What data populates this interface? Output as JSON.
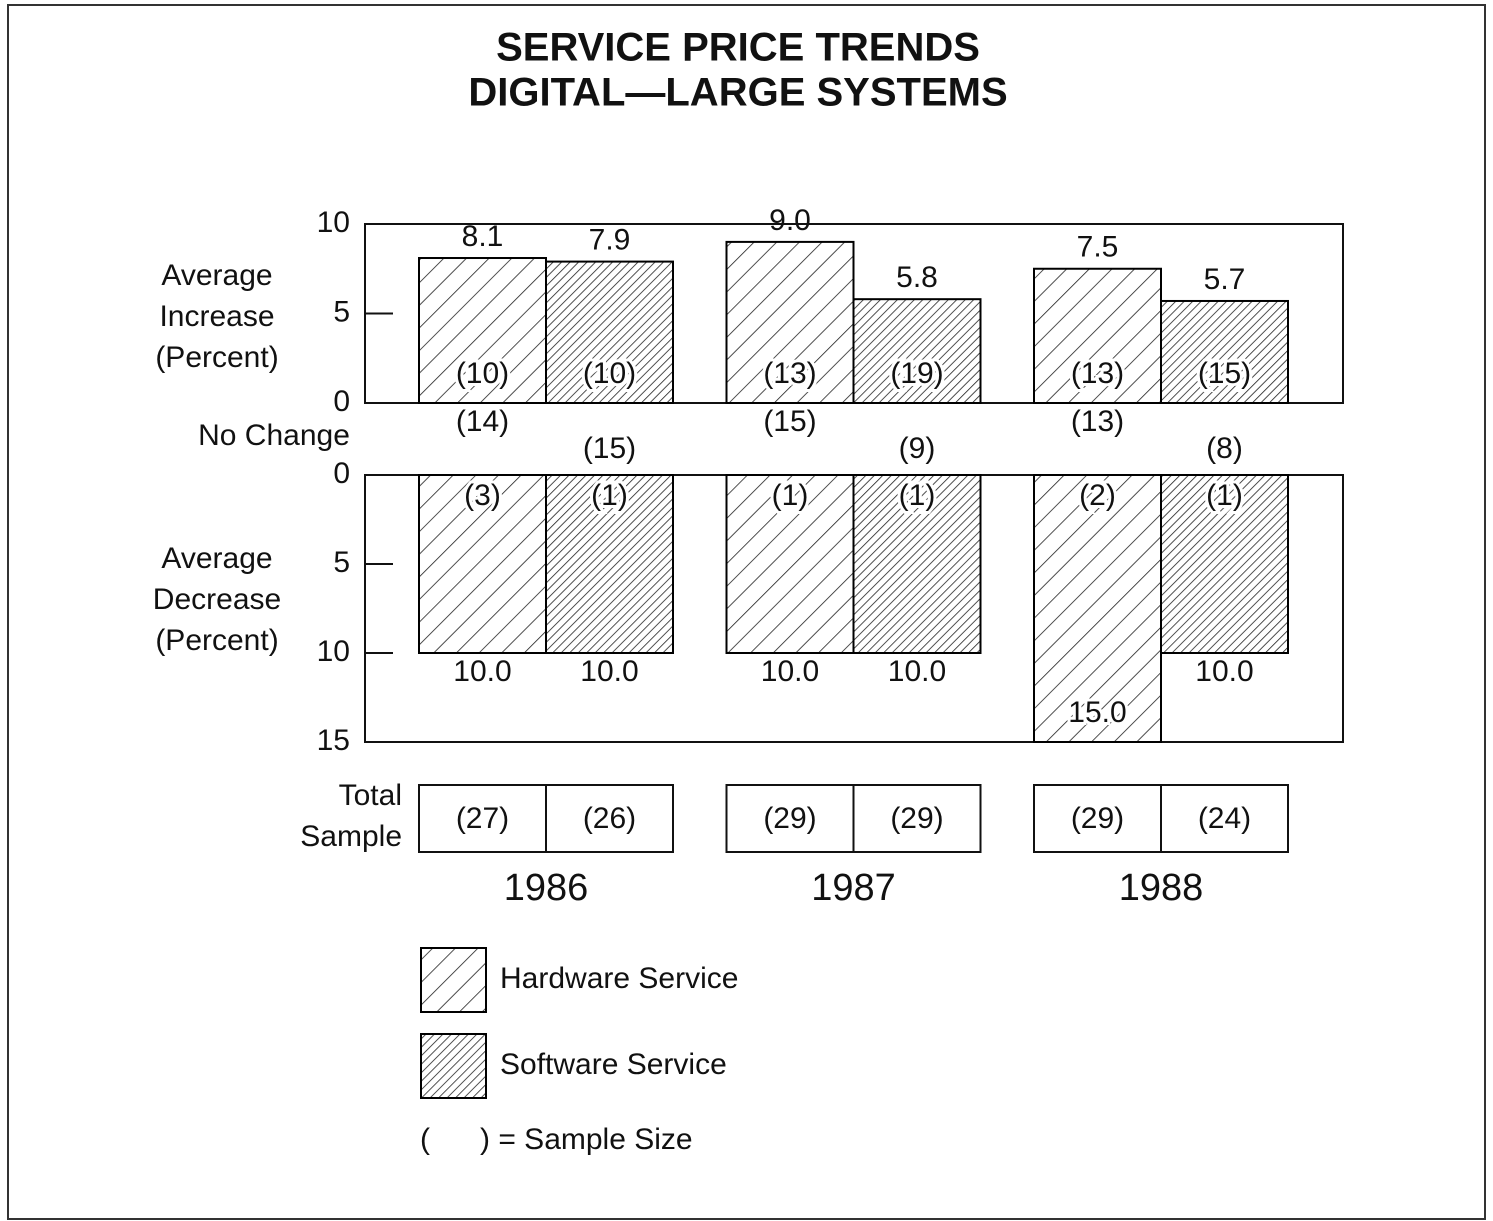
{
  "chart_data": {
    "type": "bar",
    "title": "SERVICE PRICE TRENDS",
    "subtitle": "DIGITAL—LARGE SYSTEMS",
    "categories": [
      "1986",
      "1987",
      "1988"
    ],
    "panels": {
      "increase": {
        "ylabel": [
          "Average",
          "Increase",
          "(Percent)"
        ],
        "ylim": [
          0,
          10
        ],
        "yticks": [
          0,
          5,
          10
        ]
      },
      "no_change": {
        "label": "No Change"
      },
      "decrease": {
        "ylabel": [
          "Average",
          "Decrease",
          "(Percent)"
        ],
        "ylim": [
          0,
          15
        ],
        "yticks": [
          0,
          5,
          10,
          15
        ],
        "inverted": true
      },
      "total": {
        "label": [
          "Total",
          "Sample"
        ]
      }
    },
    "series": [
      {
        "name": "Hardware Service",
        "color": "#000000",
        "hatch": "sparse",
        "increase": {
          "values": [
            8.1,
            9.0,
            7.5
          ],
          "value_labels": [
            "8.1",
            "9.0",
            "7.5"
          ]
        },
        "increase_samples": {
          "values": [
            10,
            13,
            13
          ],
          "value_labels": [
            "(10)",
            "(13)",
            "(13)"
          ]
        },
        "no_change": {
          "values": [
            14,
            15,
            13
          ],
          "value_labels": [
            "(14)",
            "(15)",
            "(13)"
          ]
        },
        "decrease": {
          "values": [
            10.0,
            10.0,
            15.0
          ],
          "value_labels": [
            "10.0",
            "10.0",
            "15.0"
          ]
        },
        "decrease_samples": {
          "values": [
            3,
            1,
            2
          ],
          "value_labels": [
            "(3)",
            "(1)",
            "(2)"
          ]
        },
        "total": {
          "values": [
            27,
            29,
            29
          ],
          "value_labels": [
            "(27)",
            "(29)",
            "(29)"
          ]
        }
      },
      {
        "name": "Software Service",
        "color": "#000000",
        "hatch": "dense",
        "increase": {
          "values": [
            7.9,
            5.8,
            5.7
          ],
          "value_labels": [
            "7.9",
            "5.8",
            "5.7"
          ]
        },
        "increase_samples": {
          "values": [
            10,
            19,
            15
          ],
          "value_labels": [
            "(10)",
            "(19)",
            "(15)"
          ]
        },
        "no_change": {
          "values": [
            15,
            9,
            8
          ],
          "value_labels": [
            "(15)",
            "(9)",
            "(8)"
          ]
        },
        "decrease": {
          "values": [
            10.0,
            10.0,
            10.0
          ],
          "value_labels": [
            "10.0",
            "10.0",
            "10.0"
          ]
        },
        "decrease_samples": {
          "values": [
            1,
            1,
            1
          ],
          "value_labels": [
            "(1)",
            "(1)",
            "(1)"
          ]
        },
        "total": {
          "values": [
            26,
            29,
            24
          ],
          "value_labels": [
            "(26)",
            "(29)",
            "(24)"
          ]
        }
      }
    ],
    "legend_note": "(      ) = Sample Size"
  }
}
